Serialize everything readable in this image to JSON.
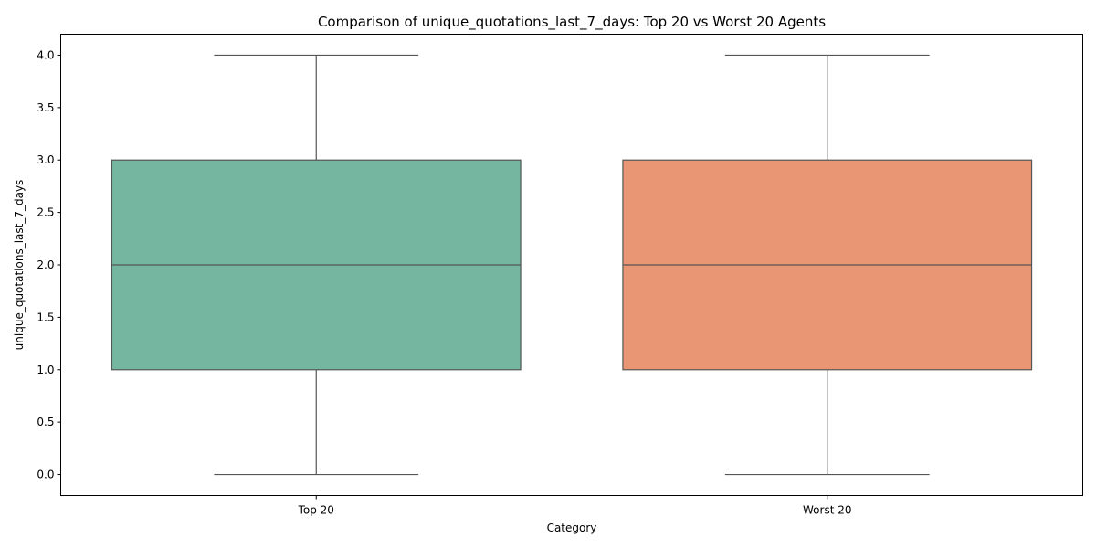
{
  "chart_data": {
    "type": "box",
    "title": "Comparison of unique_quotations_last_7_days: Top 20 vs Worst 20 Agents",
    "xlabel": "Category",
    "ylabel": "unique_quotations_last_7_days",
    "ylim": [
      -0.2,
      4.2
    ],
    "yticks": [
      "0.0",
      "0.5",
      "1.0",
      "1.5",
      "2.0",
      "2.5",
      "3.0",
      "3.5",
      "4.0"
    ],
    "categories": [
      "Top 20",
      "Worst 20"
    ],
    "boxes": [
      {
        "category": "Top 20",
        "whisker_low": 0,
        "q1": 1,
        "median": 2,
        "q3": 3,
        "whisker_high": 4,
        "color": "#75b6a0"
      },
      {
        "category": "Worst 20",
        "whisker_low": 0,
        "q1": 1,
        "median": 2,
        "q3": 3,
        "whisker_high": 4,
        "color": "#e99675"
      }
    ],
    "line_color": "#555555",
    "grid": false
  }
}
